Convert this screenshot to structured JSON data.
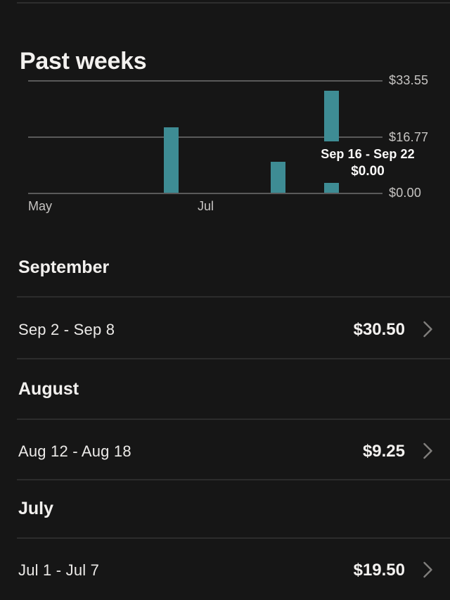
{
  "page": {
    "title": "Past weeks"
  },
  "chart": {
    "y_ticks": [
      "$33.55",
      "$16.77",
      "$0.00"
    ],
    "x_ticks": [
      "May",
      "Jul"
    ],
    "tooltip": {
      "week": "Sep 16 - Sep 22",
      "amount": "$0.00"
    }
  },
  "chart_data": {
    "type": "bar",
    "title": "Past weeks",
    "ylabel": "",
    "xlabel": "",
    "ylim": [
      0,
      33.55
    ],
    "y_tick_labels": [
      "$0.00",
      "$16.77",
      "$33.55"
    ],
    "x_tick_labels": [
      "May",
      "Jul"
    ],
    "grid": true,
    "bar_color": "#3e8c94",
    "series": [
      {
        "label": "Jul 1 - Jul 7",
        "value": 19.5
      },
      {
        "label": "Aug 12 - Aug 18",
        "value": 9.25
      },
      {
        "label": "Sep 2 - Sep 8",
        "value": 30.5
      },
      {
        "label": "Sep 16 - Sep 22",
        "value": 0.0
      }
    ],
    "selected_point": {
      "label": "Sep 16 - Sep 22",
      "value_text": "$0.00"
    }
  },
  "sections": [
    {
      "month": "September",
      "rows": [
        {
          "range": "Sep 2 - Sep 8",
          "amount": "$30.50"
        }
      ]
    },
    {
      "month": "August",
      "rows": [
        {
          "range": "Aug 12 - Aug 18",
          "amount": "$9.25"
        }
      ]
    },
    {
      "month": "July",
      "rows": [
        {
          "range": "Jul 1 - Jul 7",
          "amount": "$19.50"
        }
      ]
    }
  ],
  "colors": {
    "background": "#161616",
    "bar": "#3e8c94",
    "divider": "#2c2c2c",
    "text_primary": "#f3f1ef",
    "text_secondary": "#c7c5c3"
  }
}
